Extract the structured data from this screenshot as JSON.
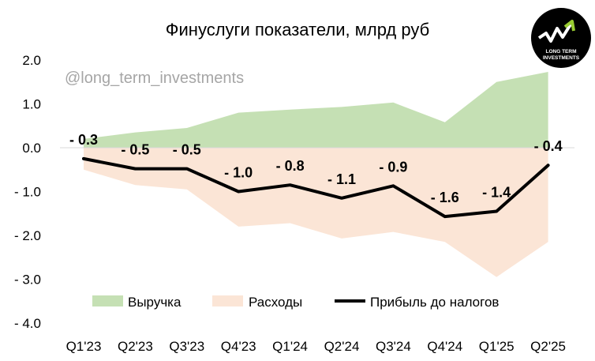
{
  "chart_data": {
    "type": "area",
    "title": "Финуслуги показатели, млрд руб",
    "watermark": "@long_term_investments",
    "categories": [
      "Q1'23",
      "Q2'23",
      "Q3'23",
      "Q4'23",
      "Q1'24",
      "Q2'24",
      "Q3'24",
      "Q4'24",
      "Q1'25",
      "Q2'25"
    ],
    "series": [
      {
        "name": "Выручка",
        "kind": "area",
        "color": "#c5e0b4",
        "values": [
          0.2,
          0.35,
          0.45,
          0.8,
          0.87,
          0.93,
          1.03,
          0.58,
          1.5,
          1.73
        ]
      },
      {
        "name": "Расходы",
        "kind": "area",
        "color": "#fbe5d6",
        "values": [
          -0.5,
          -0.85,
          -0.95,
          -1.8,
          -1.72,
          -2.07,
          -1.92,
          -2.15,
          -2.95,
          -2.15
        ]
      },
      {
        "name": "Прибыль до налогов",
        "kind": "line",
        "color": "#000000",
        "values": [
          -0.25,
          -0.48,
          -0.48,
          -1.0,
          -0.85,
          -1.15,
          -0.87,
          -1.57,
          -1.45,
          -0.4
        ],
        "labels": [
          "- 0.3",
          "- 0.5",
          "- 0.5",
          "- 1.0",
          "- 0.8",
          "- 1.1",
          "- 0.9",
          "- 1.6",
          "- 1.4",
          "- 0.4"
        ]
      }
    ],
    "yticks": [
      "2.0",
      "1.0",
      "0.0",
      "- 1.0",
      "- 2.0",
      "- 3.0",
      "- 4.0"
    ],
    "ytick_values": [
      2,
      1,
      0,
      -1,
      -2,
      -3,
      -4
    ],
    "ylim": [
      -4,
      2
    ],
    "grid": false,
    "legend_position": "bottom",
    "logo": {
      "line1": "LONG TERM",
      "line2": "INVESTMENTS"
    }
  }
}
